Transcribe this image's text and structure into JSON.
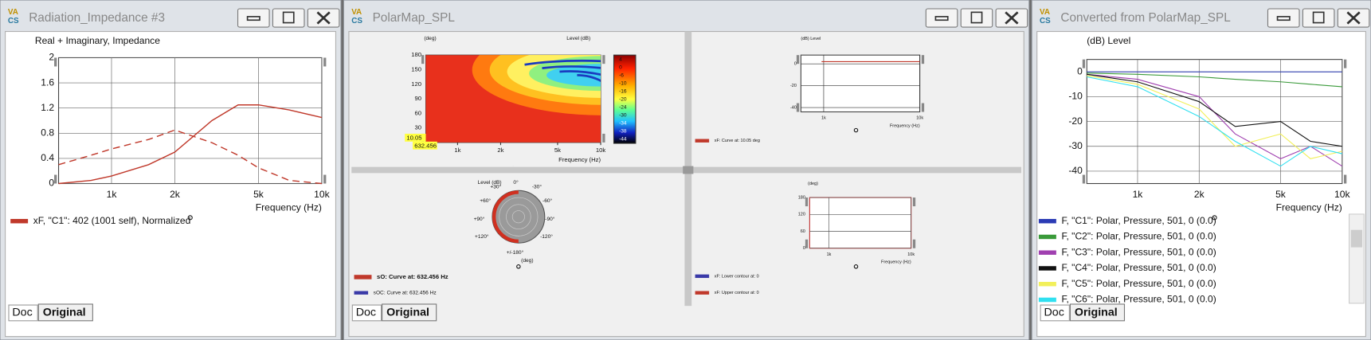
{
  "windows": [
    {
      "title": "Radiation_Impedance #3",
      "icon": [
        "VA",
        "CS"
      ],
      "tabs": [
        "Doc",
        "Original"
      ],
      "chart": {
        "type": "line",
        "title": "Real + Imaginary, Impedance",
        "x_label": "Frequency  (Hz)",
        "x_scale": "log",
        "xlim": [
          560,
          10000
        ],
        "ylim": [
          0,
          2
        ],
        "xticks": [
          {
            "value": 1000,
            "label": "1k"
          },
          {
            "value": 2000,
            "label": "2k"
          },
          {
            "value": 5000,
            "label": "5k"
          },
          {
            "value": 10000,
            "label": "10k"
          }
        ],
        "yticks": [
          0,
          0.4,
          0.8,
          1.2,
          1.6,
          2
        ],
        "grid": true,
        "x": [
          560,
          800,
          1000,
          1500,
          2000,
          3000,
          4000,
          5000,
          7000,
          10000
        ],
        "series": [
          {
            "name": "xF, \"C1\": 402 (1001 self), Normalized",
            "color": "#c0392b",
            "values": [
              0,
              0.05,
              0.12,
              0.3,
              0.5,
              1.0,
              1.25,
              1.25,
              1.17,
              1.05
            ]
          },
          {
            "color": "#c0392b",
            "style": "dashed",
            "values": [
              0.3,
              0.45,
              0.55,
              0.7,
              0.85,
              0.65,
              0.45,
              0.25,
              0.05,
              0
            ]
          }
        ]
      }
    },
    {
      "title": "PolarMap_SPL",
      "icon": [
        "VA",
        "CS"
      ],
      "tabs": [
        "Doc",
        "Original"
      ],
      "heatmap": {
        "type": "heatmap",
        "y_unit": "(deg)",
        "z_label": "Level  (dB)",
        "x_label": "Frequency  (Hz)",
        "x_scale": "log",
        "xlim": [
          600,
          10000
        ],
        "ylim": [
          0,
          180
        ],
        "xticks": [
          {
            "value": 1000,
            "label": "1k"
          },
          {
            "value": 2000,
            "label": "2k"
          },
          {
            "value": 5000,
            "label": "5k"
          },
          {
            "value": 10000,
            "label": "10k"
          }
        ],
        "yticks": [
          30,
          60,
          90,
          120,
          150,
          180
        ],
        "grid": false,
        "colorbar_ticks": [
          4,
          0,
          -6,
          -10,
          -16,
          -20,
          -24,
          -30,
          -34,
          -38,
          -44
        ],
        "cursor_y": 10.05,
        "cursor_x": 632.456
      },
      "spl_chart": {
        "type": "line",
        "y_unit": "(dB)  Level",
        "x_label": "Frequency  (Hz)",
        "x_scale": "log",
        "xlim": [
          580,
          10000
        ],
        "ylim": [
          -44,
          8
        ],
        "xticks": [
          {
            "value": 1000,
            "label": "1k"
          },
          {
            "value": 10000,
            "label": "10k"
          }
        ],
        "yticks": [
          0,
          -20,
          -40
        ],
        "grid": true,
        "x": [
          950,
          10000
        ],
        "series": [
          {
            "name": "xF: Curve at: 10.05 deg",
            "color": "#c0392b",
            "values": [
              2,
              2
            ]
          }
        ]
      },
      "polar": {
        "type": "polar",
        "title": "Level (dB)",
        "unit": "(deg)",
        "angle_labels": [
          "0°",
          "-30°",
          "-60°",
          "-90°",
          "-120°",
          "+/-180°",
          "+120°",
          "+90°",
          "+60°",
          "+30°"
        ],
        "series": [
          {
            "name": "sO: Curve at: 632.456 Hz",
            "color": "#c0392b"
          },
          {
            "name": "sOC: Curve at: 632.456 Hz",
            "color": "#3a3aa8"
          }
        ]
      },
      "contour": {
        "type": "line",
        "y_unit": "(deg)",
        "x_label": "Frequency  (Hz)",
        "x_scale": "log",
        "xlim": [
          583,
          10000
        ],
        "ylim": [
          0,
          180
        ],
        "xticks": [
          {
            "value": 1000,
            "label": "1k"
          },
          {
            "value": 10000,
            "label": "10k"
          }
        ],
        "yticks": [
          0,
          60,
          120,
          180
        ],
        "grid": true,
        "series": [
          {
            "name": "xF: Lower contour at: 0",
            "color": "#3a3aa8"
          },
          {
            "name": "xF: Upper contour at: 0",
            "color": "#c0392b"
          }
        ]
      }
    },
    {
      "title": "Converted from PolarMap_SPL",
      "icon": [
        "VA",
        "CS"
      ],
      "tabs": [
        "Doc",
        "Original"
      ],
      "chart": {
        "type": "line",
        "y_unit": "(dB)  Level",
        "x_label": "Frequency  (Hz)",
        "x_scale": "log",
        "xlim": [
          565,
          10000
        ],
        "ylim": [
          -45,
          5
        ],
        "xticks": [
          {
            "value": 1000,
            "label": "1k"
          },
          {
            "value": 2000,
            "label": "2k"
          },
          {
            "value": 5000,
            "label": "5k"
          },
          {
            "value": 10000,
            "label": "10k"
          }
        ],
        "yticks": [
          0,
          -10,
          -20,
          -30,
          -40
        ],
        "grid": true,
        "x": [
          565,
          1000,
          2000,
          3000,
          5000,
          7000,
          10000
        ],
        "series": [
          {
            "name": "F, \"C1\": Polar, Pressure, 501, 0 (0.0)",
            "color": "#2b3bb5",
            "values": [
              0,
              0,
              0,
              0,
              0,
              0,
              0
            ]
          },
          {
            "name": "F, \"C2\": Polar, Pressure, 501, 0 (0.0)",
            "color": "#3a9a3a",
            "values": [
              -0.5,
              -1,
              -2,
              -3,
              -4,
              -5,
              -6
            ]
          },
          {
            "name": "F, \"C3\": Polar, Pressure, 501, 0 (0.0)",
            "color": "#a040b0",
            "values": [
              -1,
              -3,
              -10,
              -25,
              -35,
              -30,
              -38
            ]
          },
          {
            "name": "F, \"C4\": Polar, Pressure, 501, 0 (0.0)",
            "color": "#111111",
            "values": [
              -1,
              -4,
              -12,
              -22,
              -20,
              -28,
              -30
            ]
          },
          {
            "name": "F, \"C5\": Polar, Pressure, 501, 0 (0.0)",
            "color": "#f2f05a",
            "values": [
              -1.5,
              -5,
              -15,
              -30,
              -25,
              -35,
              -32
            ]
          },
          {
            "name": "F, \"C6\": Polar, Pressure, 501, 0 (0.0)",
            "color": "#30e0f0",
            "values": [
              -2,
              -6,
              -18,
              -28,
              -38,
              -30,
              -33
            ]
          }
        ]
      }
    }
  ]
}
